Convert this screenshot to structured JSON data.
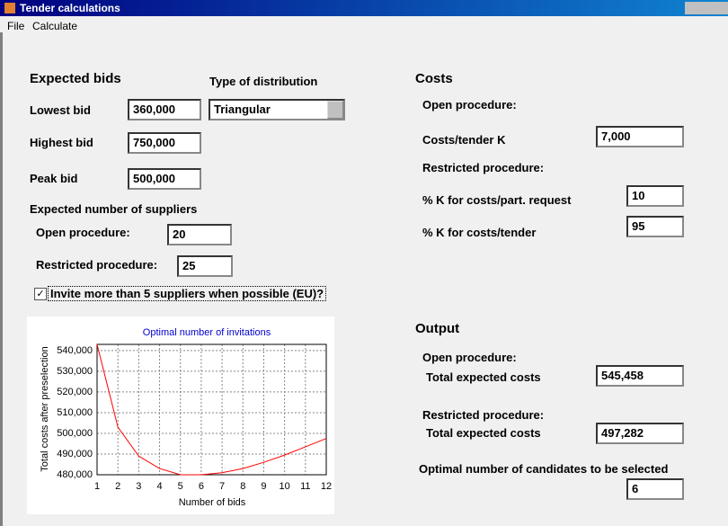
{
  "window": {
    "title": "Tender calculations"
  },
  "menu": [
    "File",
    "Calculate"
  ],
  "expected_bids": {
    "heading": "Expected bids",
    "distribution_label": "Type of distribution",
    "distribution": "Triangular",
    "lowest_label": "Lowest bid",
    "lowest": "360,000",
    "highest_label": "Highest bid",
    "highest": "750,000",
    "peak_label": "Peak bid",
    "peak": "500,000"
  },
  "suppliers": {
    "heading": "Expected number of suppliers",
    "open_label": "Open procedure:",
    "open": "20",
    "restricted_label": "Restricted procedure:",
    "restricted": "25",
    "checkbox_label": "Invite more than 5 suppliers when possible (EU)?"
  },
  "costs": {
    "heading": "Costs",
    "open_heading": "Open procedure:",
    "tender_label": "Costs/tender K",
    "tender": "7,000",
    "restricted_heading": "Restricted procedure:",
    "part_label": "% K for costs/part. request",
    "part": "10",
    "pct_tender_label": "% K for costs/tender",
    "pct_tender": "95"
  },
  "output": {
    "heading": "Output",
    "open_heading": "Open procedure:",
    "open_label": "Total expected costs",
    "open": "545,458",
    "restricted_heading": "Restricted procedure:",
    "restricted_label": "Total expected costs",
    "restricted": "497,282",
    "optimal_label": "Optimal number of candidates to be selected",
    "optimal": "6"
  },
  "chart_data": {
    "type": "line",
    "title": "Optimal number of invitations",
    "x_label": "Number of bids",
    "y_label": "Total costs after preselection",
    "x": [
      1,
      2,
      3,
      4,
      5,
      6,
      7,
      8,
      9,
      10,
      11,
      12
    ],
    "series": [
      {
        "name": "Total costs",
        "color": "#ff0000",
        "values": [
          543000,
          503000,
          489000,
          483000,
          480000,
          480000,
          481000,
          483000,
          486000,
          489500,
          493500,
          497500
        ]
      }
    ],
    "xlim": [
      1,
      12
    ],
    "xticks": [
      1,
      2,
      3,
      4,
      5,
      6,
      7,
      8,
      9,
      10,
      11,
      12
    ],
    "ylim": [
      480000,
      543000
    ],
    "yticks": [
      {
        "value": 480000,
        "label": "480,000"
      },
      {
        "value": 490000,
        "label": "490,000"
      },
      {
        "value": 500000,
        "label": "500,000"
      },
      {
        "value": 510000,
        "label": "510,000"
      },
      {
        "value": 520000,
        "label": "520,000"
      },
      {
        "value": 530000,
        "label": "530,000"
      },
      {
        "value": 540000,
        "label": "540,000"
      }
    ],
    "grid": true
  }
}
